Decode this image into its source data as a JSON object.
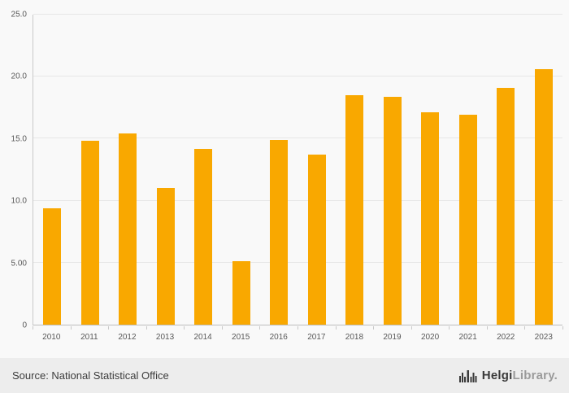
{
  "chart_data": {
    "type": "bar",
    "title": "",
    "xlabel": "",
    "ylabel": "",
    "categories": [
      "2010",
      "2011",
      "2012",
      "2013",
      "2014",
      "2015",
      "2016",
      "2017",
      "2018",
      "2019",
      "2020",
      "2021",
      "2022",
      "2023"
    ],
    "values": [
      9.4,
      14.8,
      15.4,
      11.0,
      14.2,
      5.1,
      14.9,
      13.7,
      18.5,
      18.4,
      17.1,
      16.9,
      19.1,
      20.6
    ],
    "ylim": [
      0,
      25
    ],
    "yticks": [
      {
        "label": "25.0",
        "value": 25
      },
      {
        "label": "20.0",
        "value": 20
      },
      {
        "label": "15.0",
        "value": 15
      },
      {
        "label": "10.0",
        "value": 10
      },
      {
        "label": "5.00",
        "value": 5
      },
      {
        "label": "0",
        "value": 0
      }
    ],
    "grid": true,
    "legend": false,
    "bar_color": "#F9A800"
  },
  "footer": {
    "source": "Source: National Statistical Office",
    "logo": {
      "part1": "Helgi",
      "part2": "Library."
    }
  },
  "colors": {
    "background": "#f9f9f9",
    "footer_background": "#ededed",
    "gridline": "#e7e7e7",
    "axis_line": "#c9c9c9",
    "tick_text": "#585858",
    "source_text": "#3c3c3c",
    "bar": "#F9A800"
  }
}
